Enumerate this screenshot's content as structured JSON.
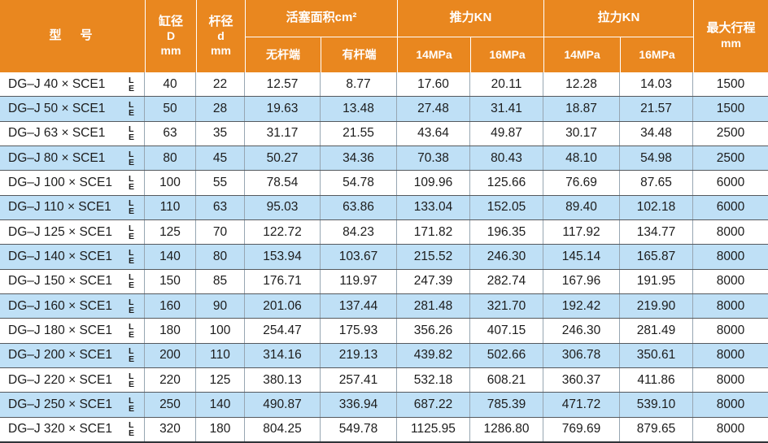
{
  "colors": {
    "header_bg": "#E9871F",
    "header_text": "#FFFFFF",
    "row_alt_bg": "#BFE0F6",
    "row_bg": "#FFFFFF",
    "grid_line_vertical": "#97A6B2",
    "grid_line_horizontal": "#55595E",
    "text": "#1C1C1C"
  },
  "table": {
    "header": {
      "model": "型　号",
      "bore": {
        "l1": "缸径",
        "l2": "D",
        "l3": "mm"
      },
      "rod": {
        "l1": "杆径",
        "l2": "d",
        "l3": "mm"
      },
      "piston_area": "活塞面积cm²",
      "push": "推力KN",
      "pull": "拉力KN",
      "stroke": {
        "l1": "最大行程",
        "l2": "mm"
      },
      "sub": {
        "rodless": "无杆端",
        "rod_end": "有杆端",
        "push_14": "14MPa",
        "push_16": "16MPa",
        "pull_14": "14MPa",
        "pull_16": "16MPa"
      }
    },
    "model_suffix": {
      "top": "L",
      "bottom": "E"
    },
    "rows": [
      {
        "model": "DG–J 40 × SCE1",
        "values": [
          "40",
          "22",
          "12.57",
          "8.77",
          "17.60",
          "20.11",
          "12.28",
          "14.03",
          "1500"
        ]
      },
      {
        "model": "DG–J 50 × SCE1",
        "values": [
          "50",
          "28",
          "19.63",
          "13.48",
          "27.48",
          "31.41",
          "18.87",
          "21.57",
          "1500"
        ]
      },
      {
        "model": "DG–J 63 × SCE1",
        "values": [
          "63",
          "35",
          "31.17",
          "21.55",
          "43.64",
          "49.87",
          "30.17",
          "34.48",
          "2500"
        ]
      },
      {
        "model": "DG–J 80 × SCE1",
        "values": [
          "80",
          "45",
          "50.27",
          "34.36",
          "70.38",
          "80.43",
          "48.10",
          "54.98",
          "2500"
        ]
      },
      {
        "model": "DG–J 100 × SCE1",
        "values": [
          "100",
          "55",
          "78.54",
          "54.78",
          "109.96",
          "125.66",
          "76.69",
          "87.65",
          "6000"
        ]
      },
      {
        "model": "DG–J 110 × SCE1",
        "values": [
          "110",
          "63",
          "95.03",
          "63.86",
          "133.04",
          "152.05",
          "89.40",
          "102.18",
          "6000"
        ]
      },
      {
        "model": "DG–J 125 × SCE1",
        "values": [
          "125",
          "70",
          "122.72",
          "84.23",
          "171.82",
          "196.35",
          "117.92",
          "134.77",
          "8000"
        ]
      },
      {
        "model": "DG–J 140 × SCE1",
        "values": [
          "140",
          "80",
          "153.94",
          "103.67",
          "215.52",
          "246.30",
          "145.14",
          "165.87",
          "8000"
        ]
      },
      {
        "model": "DG–J 150 × SCE1",
        "values": [
          "150",
          "85",
          "176.71",
          "119.97",
          "247.39",
          "282.74",
          "167.96",
          "191.95",
          "8000"
        ]
      },
      {
        "model": "DG–J 160 × SCE1",
        "values": [
          "160",
          "90",
          "201.06",
          "137.44",
          "281.48",
          "321.70",
          "192.42",
          "219.90",
          "8000"
        ]
      },
      {
        "model": "DG–J 180 × SCE1",
        "values": [
          "180",
          "100",
          "254.47",
          "175.93",
          "356.26",
          "407.15",
          "246.30",
          "281.49",
          "8000"
        ]
      },
      {
        "model": "DG–J 200 × SCE1",
        "values": [
          "200",
          "110",
          "314.16",
          "219.13",
          "439.82",
          "502.66",
          "306.78",
          "350.61",
          "8000"
        ]
      },
      {
        "model": "DG–J 220 × SCE1",
        "values": [
          "220",
          "125",
          "380.13",
          "257.41",
          "532.18",
          "608.21",
          "360.37",
          "411.86",
          "8000"
        ]
      },
      {
        "model": "DG–J 250 × SCE1",
        "values": [
          "250",
          "140",
          "490.87",
          "336.94",
          "687.22",
          "785.39",
          "471.72",
          "539.10",
          "8000"
        ]
      },
      {
        "model": "DG–J 320 × SCE1",
        "values": [
          "320",
          "180",
          "804.25",
          "549.78",
          "1125.95",
          "1286.80",
          "769.69",
          "879.65",
          "8000"
        ]
      }
    ]
  }
}
